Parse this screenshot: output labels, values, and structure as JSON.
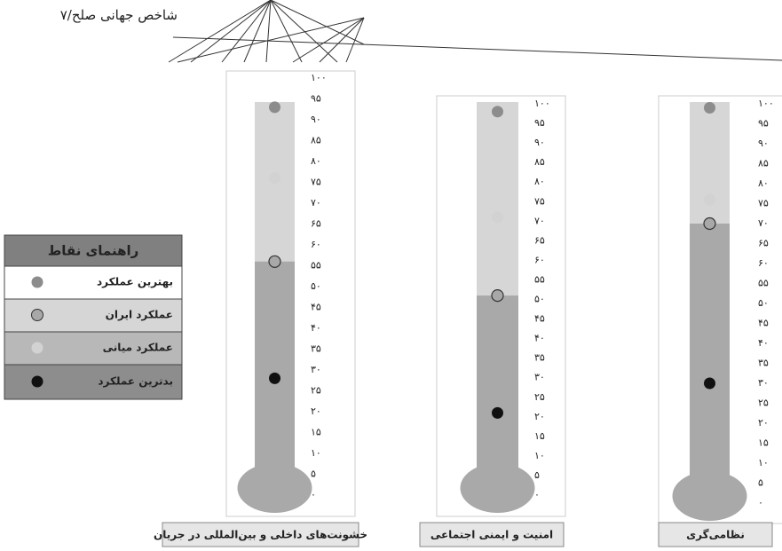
{
  "header": "شاخص جهانی صلح/۷",
  "legend_title": "راهنمای نقاط",
  "chart_data": [
    {
      "type": "thermometer",
      "title": "خشونت‌های داخلی و بین‌المللی در جریان",
      "ylim": [
        0,
        100
      ],
      "yticks": [
        {
          "value": 0,
          "label": "۰"
        },
        {
          "value": 5,
          "label": "۵"
        },
        {
          "value": 10,
          "label": "۱۰"
        },
        {
          "value": 15,
          "label": "۱۵"
        },
        {
          "value": 20,
          "label": "۲۰"
        },
        {
          "value": 25,
          "label": "۲۵"
        },
        {
          "value": 30,
          "label": "۳۰"
        },
        {
          "value": 35,
          "label": "۳۵"
        },
        {
          "value": 40,
          "label": "۴۰"
        },
        {
          "value": 45,
          "label": "۴۵"
        },
        {
          "value": 50,
          "label": "۵۰"
        },
        {
          "value": 55,
          "label": "۵۵"
        },
        {
          "value": 60,
          "label": "۶۰"
        },
        {
          "value": 65,
          "label": "۶۵"
        },
        {
          "value": 70,
          "label": "۷۰"
        },
        {
          "value": 75,
          "label": "۷۵"
        },
        {
          "value": 80,
          "label": "۸۰"
        },
        {
          "value": 85,
          "label": "۸۵"
        },
        {
          "value": 90,
          "label": "۹۰"
        },
        {
          "value": 95,
          "label": "۹۵"
        },
        {
          "value": 100,
          "label": "۱۰۰"
        }
      ],
      "series": [
        {
          "name": "بهترین عملکرد",
          "color": "#8c8c8c",
          "values": [
            93
          ]
        },
        {
          "name": "عملکرد ایران",
          "color": "#a8a8a8",
          "values": [
            56
          ]
        },
        {
          "name": "عملکرد میانی",
          "color": "#d2d2d2",
          "values": [
            76
          ]
        },
        {
          "name": "بدترین عملکرد",
          "color": "#111111",
          "values": [
            28
          ]
        }
      ]
    },
    {
      "type": "thermometer",
      "title": "امنیت و ایمنی اجتماعی",
      "ylim": [
        0,
        100
      ],
      "yticks": [
        {
          "value": 0,
          "label": "۰"
        },
        {
          "value": 5,
          "label": "۵"
        },
        {
          "value": 10,
          "label": "۱۰"
        },
        {
          "value": 15,
          "label": "۱۵"
        },
        {
          "value": 20,
          "label": "۲۰"
        },
        {
          "value": 25,
          "label": "۲۵"
        },
        {
          "value": 30,
          "label": "۳۰"
        },
        {
          "value": 35,
          "label": "۳۵"
        },
        {
          "value": 40,
          "label": "۴۰"
        },
        {
          "value": 45,
          "label": "۴۵"
        },
        {
          "value": 50,
          "label": "۵۰"
        },
        {
          "value": 55,
          "label": "۵۵"
        },
        {
          "value": 60,
          "label": "۶۰"
        },
        {
          "value": 65,
          "label": "۶۵"
        },
        {
          "value": 70,
          "label": "۷۰"
        },
        {
          "value": 75,
          "label": "۷۵"
        },
        {
          "value": 80,
          "label": "۸۰"
        },
        {
          "value": 85,
          "label": "۸۵"
        },
        {
          "value": 90,
          "label": "۹۰"
        },
        {
          "value": 95,
          "label": "۹۵"
        },
        {
          "value": 100,
          "label": "۱۰۰"
        }
      ],
      "series": [
        {
          "name": "بهترین عملکرد",
          "color": "#8c8c8c",
          "values": [
            98
          ]
        },
        {
          "name": "عملکرد ایران",
          "color": "#a8a8a8",
          "values": [
            51
          ]
        },
        {
          "name": "عملکرد میانی",
          "color": "#d2d2d2",
          "values": [
            71
          ]
        },
        {
          "name": "بدترین عملکرد",
          "color": "#111111",
          "values": [
            21
          ]
        }
      ]
    },
    {
      "type": "thermometer",
      "title": "نظامی‌گری",
      "ylim": [
        0,
        100
      ],
      "yticks": [
        {
          "value": 0,
          "label": "۰"
        },
        {
          "value": 5,
          "label": "۵"
        },
        {
          "value": 10,
          "label": "۱۰"
        },
        {
          "value": 15,
          "label": "۱۵"
        },
        {
          "value": 20,
          "label": "۲۰"
        },
        {
          "value": 25,
          "label": "۲۵"
        },
        {
          "value": 30,
          "label": "۳۰"
        },
        {
          "value": 35,
          "label": "۳۵"
        },
        {
          "value": 40,
          "label": "۴۰"
        },
        {
          "value": 45,
          "label": "۴۵"
        },
        {
          "value": 50,
          "label": "۵۰"
        },
        {
          "value": 55,
          "label": "۵۵"
        },
        {
          "value": 60,
          "label": "۶۰"
        },
        {
          "value": 65,
          "label": "۶۵"
        },
        {
          "value": 70,
          "label": "۷۰"
        },
        {
          "value": 75,
          "label": "۷۵"
        },
        {
          "value": 80,
          "label": "۸۰"
        },
        {
          "value": 85,
          "label": "۸۵"
        },
        {
          "value": 90,
          "label": "۹۰"
        },
        {
          "value": 95,
          "label": "۹۵"
        },
        {
          "value": 100,
          "label": "۱۰۰"
        }
      ],
      "series": [
        {
          "name": "بهترین عملکرد",
          "color": "#8c8c8c",
          "values": [
            99
          ]
        },
        {
          "name": "عملکرد ایران",
          "color": "#a8a8a8",
          "values": [
            70
          ]
        },
        {
          "name": "عملکرد میانی",
          "color": "#d2d2d2",
          "values": [
            76
          ]
        },
        {
          "name": "بدترین عملکرد",
          "color": "#111111",
          "values": [
            30
          ]
        }
      ]
    }
  ]
}
